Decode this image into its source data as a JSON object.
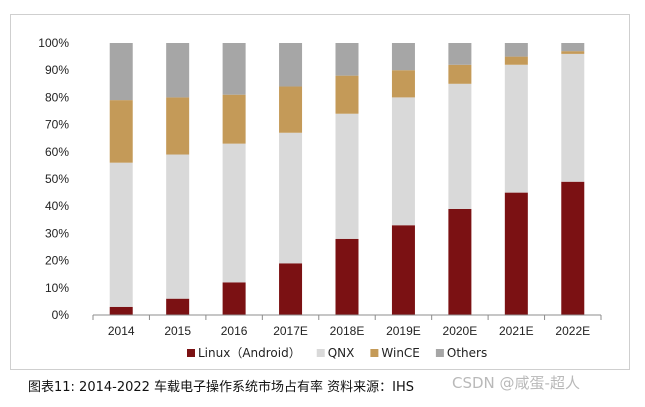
{
  "chart_data": {
    "type": "bar",
    "stacked": true,
    "categories": [
      "2014",
      "2015",
      "2016",
      "2017E",
      "2018E",
      "2019E",
      "2020E",
      "2021E",
      "2022E"
    ],
    "series": [
      {
        "name": "Linux（Android）",
        "color": "#7b1113",
        "values": [
          3,
          6,
          12,
          19,
          28,
          33,
          39,
          45,
          49
        ]
      },
      {
        "name": "QNX",
        "color": "#d9d9d9",
        "values": [
          53,
          53,
          51,
          48,
          46,
          47,
          46,
          47,
          47
        ]
      },
      {
        "name": "WinCE",
        "color": "#c49a58",
        "values": [
          23,
          21,
          18,
          17,
          14,
          10,
          7,
          3,
          1
        ]
      },
      {
        "name": "Others",
        "color": "#a6a6a6",
        "values": [
          21,
          20,
          19,
          16,
          12,
          10,
          8,
          5,
          3
        ]
      }
    ],
    "yticks": [
      "0%",
      "10%",
      "20%",
      "30%",
      "40%",
      "50%",
      "60%",
      "70%",
      "80%",
      "90%",
      "100%"
    ],
    "ylim": [
      0,
      100
    ],
    "grid": false,
    "legend_position": "bottom",
    "title": "",
    "xlabel": "",
    "ylabel": ""
  },
  "caption": "图表11: 2014-2022 车载电子操作系统市场占有率  资料来源：IHS",
  "watermark": "CSDN @咸蛋-超人"
}
